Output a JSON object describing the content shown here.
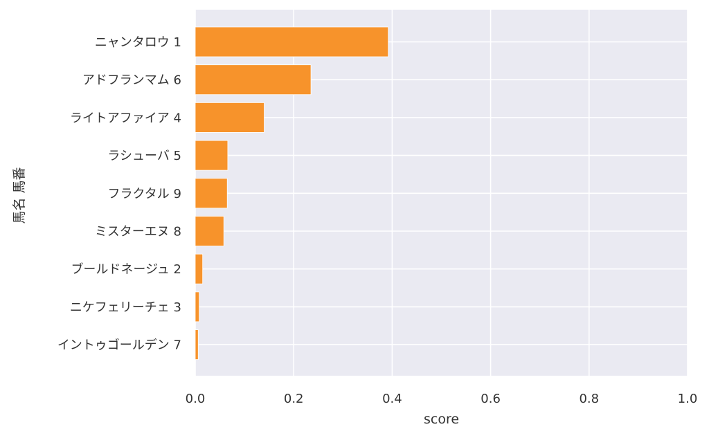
{
  "chart_data": {
    "type": "bar",
    "orientation": "horizontal",
    "categories": [
      "ニャンタロウ 1",
      "アドフランマム 6",
      "ライトアファイア 4",
      "ラシューバ 5",
      "フラクタル 9",
      "ミスターエヌ 8",
      "ブールドネージュ 2",
      "ニケフェリーチェ 3",
      "イントゥゴールデン 7"
    ],
    "values": [
      0.392,
      0.235,
      0.14,
      0.066,
      0.065,
      0.058,
      0.015,
      0.008,
      0.006
    ],
    "xlabel": "score",
    "ylabel": "馬名 馬番",
    "xlim": [
      0,
      1.0
    ],
    "xticks": [
      "0.0",
      "0.2",
      "0.4",
      "0.6",
      "0.8",
      "1.0"
    ],
    "grid": true,
    "bar_color": "#f7932b",
    "background_color": "#eaeaf2",
    "grid_color": "#ffffff"
  }
}
